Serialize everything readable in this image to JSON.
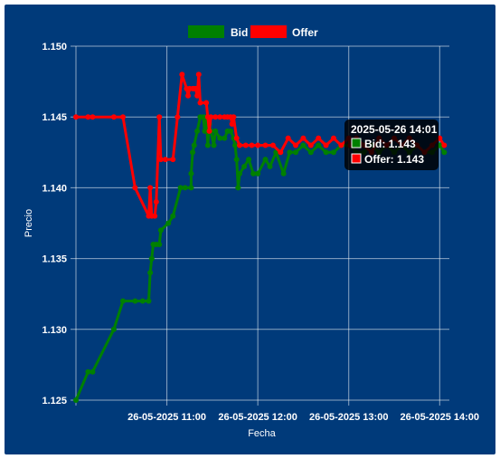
{
  "chart_data": {
    "type": "line",
    "xlabel": "Fecha",
    "ylabel": "Precio",
    "x_tick_labels": [
      "26-05-2025 11:00",
      "26-05-2025 12:00",
      "26-05-2025 13:00",
      "26-05-2025 14:00"
    ],
    "x_ticks": [
      "10:00",
      "11:00",
      "12:00",
      "13:00",
      "14:00"
    ],
    "xlim": [
      "10:00",
      "14:04"
    ],
    "ylim": [
      1.125,
      1.15
    ],
    "y_ticks": [
      "1.125",
      "1.130",
      "1.135",
      "1.140",
      "1.145",
      "1.150"
    ],
    "grid": true,
    "legend_position": "top-center",
    "series": [
      {
        "name": "Bid",
        "color": "#008000",
        "points": [
          [
            "10:00",
            1.125
          ],
          [
            "10:08",
            1.127
          ],
          [
            "10:11",
            1.127
          ],
          [
            "10:25",
            1.13
          ],
          [
            "10:31",
            1.132
          ],
          [
            "10:39",
            1.132
          ],
          [
            "10:44",
            1.132
          ],
          [
            "10:48",
            1.132
          ],
          [
            "10:49",
            1.134
          ],
          [
            "10:50",
            1.135
          ],
          [
            "10:51",
            1.136
          ],
          [
            "10:53",
            1.136
          ],
          [
            "10:55",
            1.136
          ],
          [
            "10:56",
            1.137
          ],
          [
            "11:01",
            1.1375
          ],
          [
            "11:04",
            1.138
          ],
          [
            "11:09",
            1.14
          ],
          [
            "11:12",
            1.14
          ],
          [
            "11:16",
            1.14
          ],
          [
            "11:16",
            1.141
          ],
          [
            "11:17",
            1.1425
          ],
          [
            "11:18",
            1.143
          ],
          [
            "11:20",
            1.144
          ],
          [
            "11:22",
            1.145
          ],
          [
            "11:24",
            1.145
          ],
          [
            "11:25",
            1.144
          ],
          [
            "11:26",
            1.145
          ],
          [
            "11:27",
            1.143
          ],
          [
            "11:28",
            1.1445
          ],
          [
            "11:29",
            1.144
          ],
          [
            "11:31",
            1.143
          ],
          [
            "11:32",
            1.144
          ],
          [
            "11:35",
            1.1435
          ],
          [
            "11:38",
            1.1435
          ],
          [
            "11:40",
            1.144
          ],
          [
            "11:42",
            1.144
          ],
          [
            "11:44",
            1.1435
          ],
          [
            "11:45",
            1.143
          ],
          [
            "11:46",
            1.142
          ],
          [
            "11:47",
            1.14
          ],
          [
            "11:48",
            1.141
          ],
          [
            "11:51",
            1.1415
          ],
          [
            "11:54",
            1.142
          ],
          [
            "11:57",
            1.141
          ],
          [
            "12:00",
            1.141
          ],
          [
            "12:05",
            1.142
          ],
          [
            "12:08",
            1.1415
          ],
          [
            "12:12",
            1.1425
          ],
          [
            "12:17",
            1.141
          ],
          [
            "12:21",
            1.1425
          ],
          [
            "12:25",
            1.1425
          ],
          [
            "12:30",
            1.143
          ],
          [
            "12:35",
            1.1425
          ],
          [
            "12:40",
            1.143
          ],
          [
            "12:45",
            1.1425
          ],
          [
            "12:50",
            1.1425
          ],
          [
            "12:55",
            1.143
          ],
          [
            "13:00",
            1.143
          ],
          [
            "13:01",
            1.143
          ],
          [
            "13:05",
            1.1425
          ],
          [
            "13:10",
            1.1425
          ],
          [
            "13:15",
            1.143
          ],
          [
            "13:20",
            1.1425
          ],
          [
            "13:25",
            1.143
          ],
          [
            "13:30",
            1.1425
          ],
          [
            "13:35",
            1.143
          ],
          [
            "13:40",
            1.1425
          ],
          [
            "13:45",
            1.143
          ],
          [
            "13:50",
            1.1425
          ],
          [
            "13:55",
            1.1425
          ],
          [
            "14:00",
            1.143
          ],
          [
            "14:03",
            1.1425
          ]
        ]
      },
      {
        "name": "Offer",
        "color": "#ff0000",
        "points": [
          [
            "10:00",
            1.145
          ],
          [
            "10:08",
            1.145
          ],
          [
            "10:11",
            1.145
          ],
          [
            "10:25",
            1.145
          ],
          [
            "10:31",
            1.145
          ],
          [
            "10:39",
            1.14
          ],
          [
            "10:48",
            1.138
          ],
          [
            "10:49",
            1.14
          ],
          [
            "10:50",
            1.138
          ],
          [
            "10:52",
            1.138
          ],
          [
            "10:53",
            1.139
          ],
          [
            "10:55",
            1.145
          ],
          [
            "10:56",
            1.142
          ],
          [
            "10:59",
            1.142
          ],
          [
            "11:04",
            1.142
          ],
          [
            "11:07",
            1.145
          ],
          [
            "11:10",
            1.148
          ],
          [
            "11:13",
            1.147
          ],
          [
            "11:14",
            1.1465
          ],
          [
            "11:15",
            1.147
          ],
          [
            "11:17",
            1.147
          ],
          [
            "11:18",
            1.147
          ],
          [
            "11:19",
            1.147
          ],
          [
            "11:20",
            1.1465
          ],
          [
            "11:21",
            1.148
          ],
          [
            "11:22",
            1.146
          ],
          [
            "11:26",
            1.146
          ],
          [
            "11:27",
            1.145
          ],
          [
            "11:28",
            1.144
          ],
          [
            "11:29",
            1.145
          ],
          [
            "11:32",
            1.145
          ],
          [
            "11:35",
            1.145
          ],
          [
            "11:38",
            1.145
          ],
          [
            "11:40",
            1.145
          ],
          [
            "11:42",
            1.145
          ],
          [
            "11:43",
            1.1445
          ],
          [
            "11:44",
            1.145
          ],
          [
            "11:46",
            1.1435
          ],
          [
            "11:48",
            1.143
          ],
          [
            "11:52",
            1.143
          ],
          [
            "11:56",
            1.143
          ],
          [
            "12:00",
            1.143
          ],
          [
            "12:05",
            1.143
          ],
          [
            "12:10",
            1.143
          ],
          [
            "12:15",
            1.1425
          ],
          [
            "12:20",
            1.1435
          ],
          [
            "12:25",
            1.143
          ],
          [
            "12:30",
            1.1435
          ],
          [
            "12:35",
            1.143
          ],
          [
            "12:40",
            1.1435
          ],
          [
            "12:45",
            1.143
          ],
          [
            "12:50",
            1.1435
          ],
          [
            "12:55",
            1.143
          ],
          [
            "13:00",
            1.1435
          ],
          [
            "13:01",
            1.143
          ],
          [
            "13:05",
            1.1435
          ],
          [
            "13:10",
            1.143
          ],
          [
            "13:15",
            1.1425
          ],
          [
            "13:20",
            1.1435
          ],
          [
            "13:25",
            1.143
          ],
          [
            "13:30",
            1.1435
          ],
          [
            "13:35",
            1.143
          ],
          [
            "13:40",
            1.1435
          ],
          [
            "13:45",
            1.143
          ],
          [
            "13:50",
            1.1425
          ],
          [
            "13:55",
            1.143
          ],
          [
            "14:00",
            1.1435
          ],
          [
            "14:03",
            1.143
          ]
        ]
      }
    ]
  },
  "legend": {
    "items": [
      {
        "label": "Bid",
        "color": "#008000"
      },
      {
        "label": "Offer",
        "color": "#ff0000"
      }
    ]
  },
  "tooltip": {
    "title": "2025-05-26 14:01",
    "lines": [
      {
        "label": "Bid: 1.143",
        "color": "#008000"
      },
      {
        "label": "Offer: 1.143",
        "color": "#ff0000"
      }
    ]
  }
}
